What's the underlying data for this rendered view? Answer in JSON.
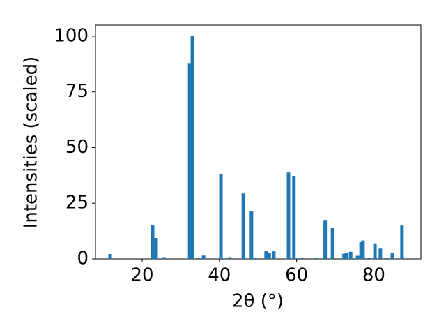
{
  "chart_data": {
    "type": "bar",
    "xlabel": "2θ (°)",
    "ylabel": "Intensities (scaled)",
    "x": [
      11.7,
      22.7,
      23.6,
      25.6,
      32.3,
      33.0,
      34.8,
      35.9,
      40.4,
      42.7,
      46.2,
      48.3,
      49.1,
      52.1,
      52.9,
      54.1,
      57.9,
      59.3,
      61.5,
      64.9,
      67.4,
      69.3,
      72.3,
      72.9,
      74.0,
      75.8,
      76.7,
      77.2,
      78.7,
      80.3,
      81.7,
      83.2,
      84.8,
      87.3
    ],
    "values": [
      2.2,
      15.3,
      9.4,
      0.8,
      88,
      100,
      0.5,
      1.5,
      38.2,
      0.8,
      29.4,
      21.3,
      0.5,
      3.7,
      2.8,
      3.4,
      38.8,
      37.3,
      0.6,
      0.6,
      17.5,
      14.1,
      2.3,
      2.8,
      3.2,
      1.4,
      7.5,
      8.3,
      0.6,
      7.0,
      4.6,
      0.5,
      2.8,
      15.0
    ],
    "color": "#1f77b4",
    "xlim": [
      7.9,
      92.2
    ],
    "xticks": [
      20,
      40,
      60,
      80
    ],
    "ylim": [
      0,
      105
    ],
    "yticks": [
      0,
      25,
      50,
      75,
      100
    ],
    "grid": false
  }
}
